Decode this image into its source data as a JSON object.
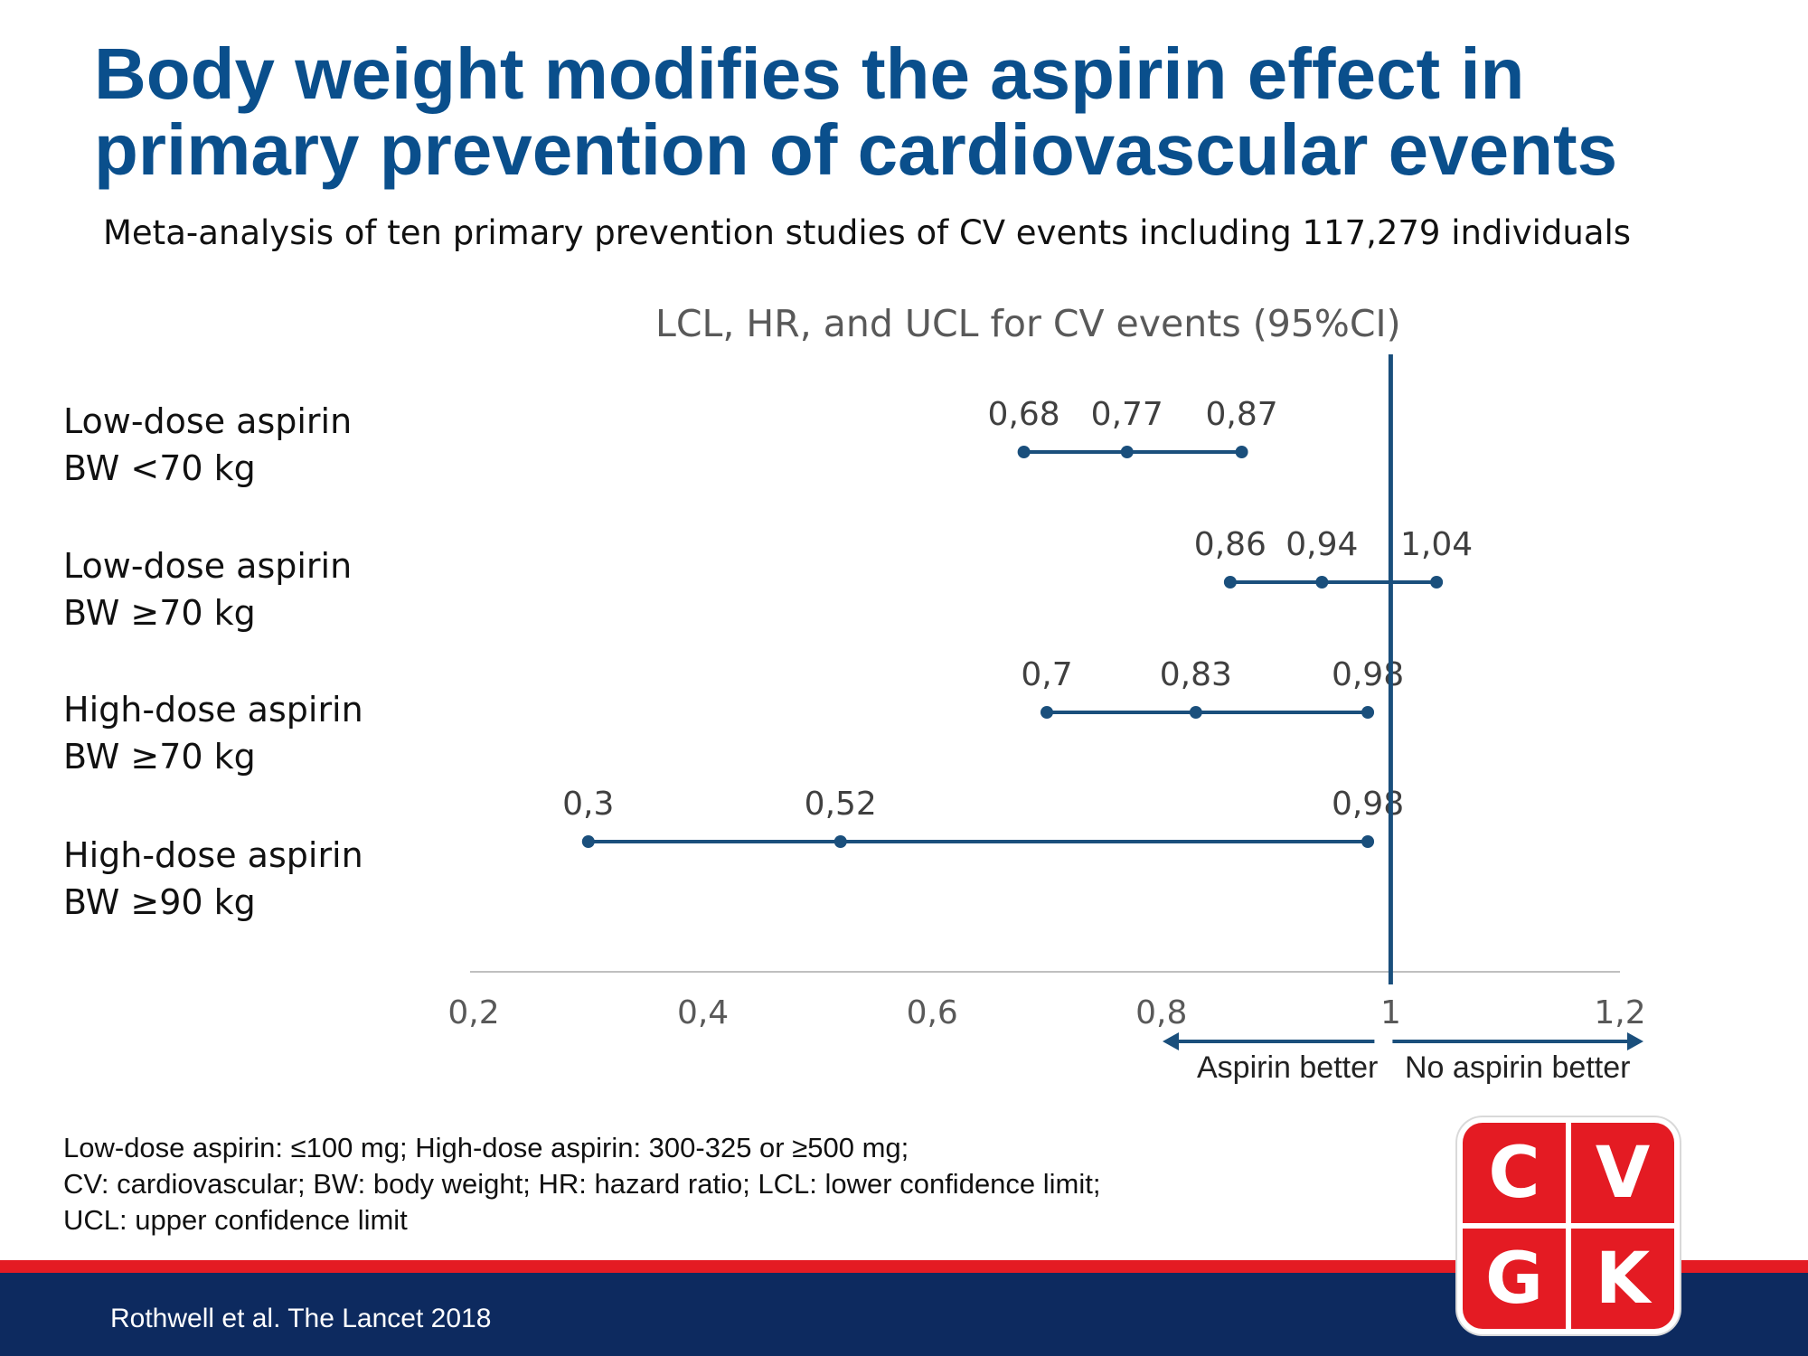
{
  "slide": {
    "title_line1": "Body weight modifies the aspirin effect in",
    "title_line2": "primary prevention of cardiovascular events",
    "subtitle": "Meta-analysis of ten primary prevention studies of CV events including 117,279 individuals",
    "footnote_lines": [
      "Low-dose aspirin: ≤100 mg; High-dose aspirin: 300-325 or ≥500 mg;",
      "CV: cardiovascular; BW: body weight; HR: hazard ratio; LCL: lower confidence limit;",
      "UCL: upper confidence limit"
    ],
    "citation": "Rothwell et al. The Lancet 2018",
    "logo_letters": [
      "C",
      "V",
      "G",
      "K"
    ],
    "colors": {
      "title": "#0a4f8c",
      "series": "#1a4f7c",
      "band_red": "#e41b23",
      "band_blue": "#0d2a5f",
      "logo_red": "#e41b23"
    }
  },
  "chart_data": {
    "type": "forest",
    "title": "LCL, HR, and UCL for CV events (95%CI)",
    "xlim": [
      0.2,
      1.2
    ],
    "x_ticks": [
      0.2,
      0.4,
      0.6,
      0.8,
      1,
      1.2
    ],
    "x_tick_labels": [
      "0,2",
      "0,4",
      "0,6",
      "0,8",
      "1",
      "1,2"
    ],
    "reference_line": 1,
    "direction_labels": {
      "left": "Aspirin better",
      "right": "No aspirin better"
    },
    "rows": [
      {
        "label_line1": "Low-dose aspirin",
        "label_line2": "BW <70 kg",
        "lcl": 0.68,
        "hr": 0.77,
        "ucl": 0.87,
        "lcl_label": "0,68",
        "hr_label": "0,77",
        "ucl_label": "0,87"
      },
      {
        "label_line1": "Low-dose aspirin",
        "label_line2": "BW ≥70 kg",
        "lcl": 0.86,
        "hr": 0.94,
        "ucl": 1.04,
        "lcl_label": "0,86",
        "hr_label": "0,94",
        "ucl_label": "1,04"
      },
      {
        "label_line1": "High-dose aspirin",
        "label_line2": "BW ≥70 kg",
        "lcl": 0.7,
        "hr": 0.83,
        "ucl": 0.98,
        "lcl_label": "0,7",
        "hr_label": "0,83",
        "ucl_label": "0,98"
      },
      {
        "label_line1": "High-dose aspirin",
        "label_line2": "BW ≥90 kg",
        "lcl": 0.3,
        "hr": 0.52,
        "ucl": 0.98,
        "lcl_label": "0,3",
        "hr_label": "0,52",
        "ucl_label": "0,98"
      }
    ]
  }
}
